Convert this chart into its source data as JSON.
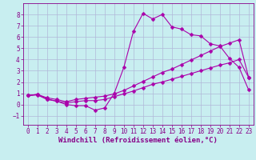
{
  "xlabel": "Windchill (Refroidissement éolien,°C)",
  "ylabel": "",
  "bg_color": "#c8eef0",
  "grid_color": "#b0b8d8",
  "line_color": "#aa00aa",
  "xlim": [
    -0.5,
    23.5
  ],
  "ylim": [
    -1.8,
    9.0
  ],
  "xticks": [
    0,
    1,
    2,
    3,
    4,
    5,
    6,
    7,
    8,
    9,
    10,
    11,
    12,
    13,
    14,
    15,
    16,
    17,
    18,
    19,
    20,
    21,
    22,
    23
  ],
  "yticks": [
    -1,
    0,
    1,
    2,
    3,
    4,
    5,
    6,
    7,
    8
  ],
  "line1_x": [
    0,
    1,
    2,
    3,
    4,
    5,
    6,
    7,
    8,
    9,
    10,
    11,
    12,
    13,
    14,
    15,
    16,
    17,
    18,
    19,
    20,
    21,
    22,
    23
  ],
  "line1_y": [
    0.8,
    0.9,
    0.5,
    0.3,
    0.0,
    -0.1,
    -0.1,
    -0.5,
    -0.3,
    1.0,
    3.3,
    6.5,
    8.1,
    7.6,
    8.0,
    6.9,
    6.7,
    6.2,
    6.1,
    5.4,
    5.2,
    4.1,
    3.3,
    1.3
  ],
  "line2_x": [
    0,
    1,
    2,
    3,
    4,
    5,
    6,
    7,
    8,
    9,
    10,
    11,
    12,
    13,
    14,
    15,
    16,
    17,
    18,
    19,
    20,
    21,
    22,
    23
  ],
  "line2_y": [
    0.8,
    0.85,
    0.45,
    0.3,
    0.15,
    0.25,
    0.35,
    0.35,
    0.45,
    0.7,
    0.95,
    1.2,
    1.5,
    1.8,
    2.0,
    2.25,
    2.5,
    2.75,
    3.0,
    3.25,
    3.5,
    3.7,
    4.0,
    2.4
  ],
  "line3_x": [
    0,
    1,
    2,
    3,
    4,
    5,
    6,
    7,
    8,
    9,
    10,
    11,
    12,
    13,
    14,
    15,
    16,
    17,
    18,
    19,
    20,
    21,
    22,
    23
  ],
  "line3_y": [
    0.8,
    0.9,
    0.6,
    0.45,
    0.25,
    0.45,
    0.55,
    0.65,
    0.75,
    0.95,
    1.25,
    1.65,
    2.05,
    2.45,
    2.85,
    3.15,
    3.55,
    3.95,
    4.35,
    4.75,
    5.15,
    5.45,
    5.75,
    2.4
  ],
  "marker": "D",
  "markersize": 2.5,
  "linewidth": 0.8,
  "tick_fontsize": 5.5,
  "label_fontsize": 6.5
}
